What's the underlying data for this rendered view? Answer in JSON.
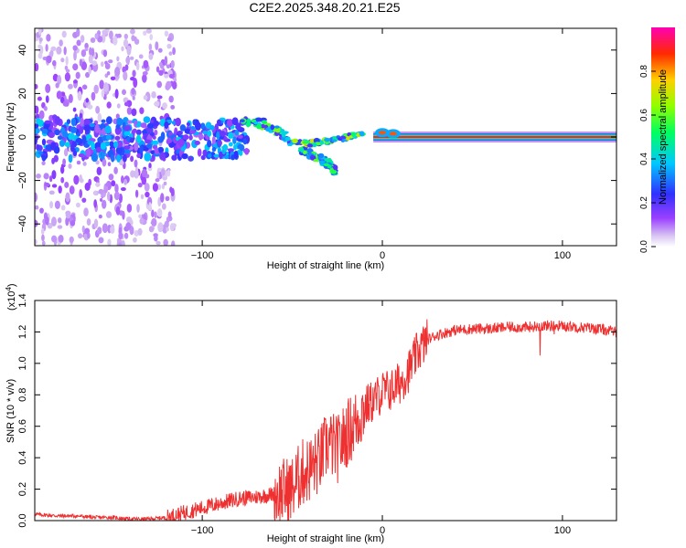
{
  "title": "C2E2.2025.348.20.21.E25",
  "chart_data": [
    {
      "type": "heatmap",
      "xlabel": "Height of straight line (km)",
      "ylabel": "Frequency (Hz)",
      "xlim": [
        -193,
        130
      ],
      "ylim": [
        -50,
        50
      ],
      "xticks": [
        -100,
        0,
        100
      ],
      "yticks": [
        -40,
        -20,
        0,
        20,
        40
      ],
      "colorbar": {
        "label": "Normalized spectral amplitude",
        "range": [
          0,
          1
        ],
        "ticks": [
          0.0,
          0.2,
          0.4,
          0.6,
          0.8
        ],
        "tick_labels": [
          "0.0",
          "0.2",
          "0.4",
          "0.6",
          "0.8"
        ]
      },
      "features": [
        {
          "name": "scattered noise",
          "x_range": [
            -193,
            -115
          ],
          "frequency_range": [
            -50,
            50
          ],
          "amplitude": 0.15
        },
        {
          "name": "central band",
          "x_range": [
            -193,
            -75
          ],
          "frequency_range": [
            -10,
            8
          ],
          "amplitude": 0.3
        },
        {
          "name": "descending doppler trace",
          "points": [
            [
              -78,
              7
            ],
            [
              -65,
              6
            ],
            [
              -55,
              1
            ],
            [
              -45,
              -6
            ],
            [
              -38,
              -9
            ],
            [
              -30,
              -12
            ],
            [
              -26,
              -16
            ]
          ],
          "amplitude": 0.45
        },
        {
          "name": "upper trace",
          "points": [
            [
              -50,
              -2
            ],
            [
              -40,
              -3
            ],
            [
              -30,
              -2
            ],
            [
              -20,
              0
            ],
            [
              -10,
              1
            ]
          ],
          "amplitude": 0.55
        },
        {
          "name": "carrier line",
          "x_range": [
            -5,
            130
          ],
          "frequency": 0,
          "amplitude": 0.95
        },
        {
          "name": "carrier blob",
          "points": [
            [
              0,
              2
            ],
            [
              6,
              1.5
            ]
          ],
          "amplitude": 0.85
        }
      ]
    },
    {
      "type": "line",
      "xlabel": "Height of straight line (km)",
      "ylabel": "SNR (10 * v/v)",
      "scale_label": "(x10",
      "scale_exponent": "4",
      "xlim": [
        -193,
        130
      ],
      "ylim": [
        0,
        1.4
      ],
      "xticks": [
        -100,
        0,
        100
      ],
      "yticks": [
        0.0,
        0.2,
        0.4,
        0.6,
        0.8,
        1.0,
        1.2,
        1.4
      ],
      "ytick_labels": [
        "0.0",
        "0.2",
        "0.4",
        "0.6",
        "0.8",
        "1.0",
        "1.2",
        "1.4"
      ],
      "color": "#ee3030",
      "series": [
        {
          "name": "SNR",
          "x": [
            -193,
            -180,
            -170,
            -160,
            -150,
            -140,
            -130,
            -120,
            -110,
            -100,
            -90,
            -80,
            -70,
            -60,
            -50,
            -45,
            -40,
            -35,
            -30,
            -25,
            -20,
            -15,
            -10,
            -5,
            0,
            5,
            10,
            15,
            20,
            25,
            30,
            40,
            50,
            60,
            70,
            80,
            90,
            100,
            110,
            120,
            130
          ],
          "y": [
            0.04,
            0.03,
            0.03,
            0.02,
            0.02,
            0.01,
            0.01,
            0.02,
            0.05,
            0.08,
            0.11,
            0.14,
            0.15,
            0.17,
            0.2,
            0.3,
            0.33,
            0.38,
            0.5,
            0.45,
            0.55,
            0.62,
            0.72,
            0.76,
            0.82,
            0.83,
            0.88,
            0.96,
            1.08,
            1.15,
            1.18,
            1.21,
            1.22,
            1.22,
            1.23,
            1.23,
            1.24,
            1.24,
            1.23,
            1.22,
            1.2
          ]
        }
      ]
    }
  ]
}
